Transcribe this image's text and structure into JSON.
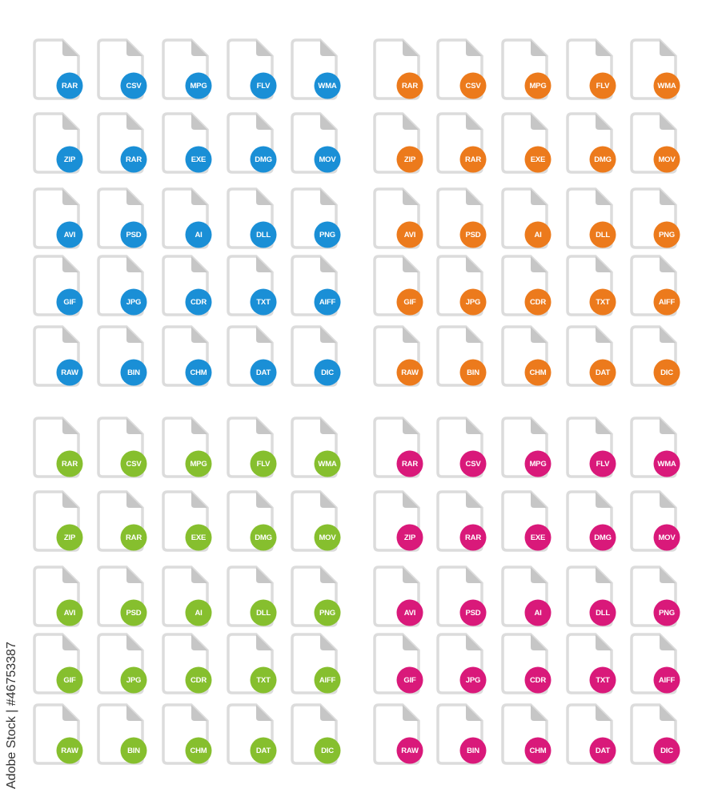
{
  "labels": [
    "RAR",
    "CSV",
    "MPG",
    "FLV",
    "WMA",
    "ZIP",
    "RAR",
    "EXE",
    "DMG",
    "MOV",
    "AVI",
    "PSD",
    "AI",
    "DLL",
    "PNG",
    "GIF",
    "JPG",
    "CDR",
    "TXT",
    "AIFF",
    "RAW",
    "BIN",
    "CHM",
    "DAT",
    "DIC"
  ],
  "sets": [
    {
      "name": "blue",
      "color": "#1a8fd6"
    },
    {
      "name": "orange",
      "color": "#ec7a1c"
    },
    {
      "name": "green",
      "color": "#86bf2e"
    },
    {
      "name": "magenta",
      "color": "#d9197a"
    }
  ],
  "watermark": "Adobe Stock | #46753387"
}
